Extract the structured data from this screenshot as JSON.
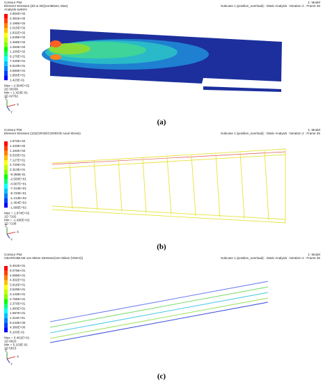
{
  "panels": [
    {
      "title_lines": [
        "Contour Plot",
        "Element Stresses (2D & 3D)(vonMises, Max)",
        "Analysis system"
      ],
      "header_right": [
        "1: Model",
        "Subcase 1 (positive_overload) : Static Analysis : Iteration 2 : Frame 25"
      ],
      "legend": [
        "2.564E+02",
        "2.381E+02",
        "2.198E+02",
        "2.015E+02",
        "1.832E+02",
        "1.649E+02",
        "1.466E+02",
        "1.283E+02",
        "1.100E+02",
        "9.170E+01",
        "7.340E+01",
        "5.510E+01",
        "3.680E+01",
        "1.850E+01",
        "1.423E-01"
      ],
      "summary": [
        "Max = 2.564E+02",
        "2D 30336",
        "Min = 1.423E-01",
        "2D 42762"
      ],
      "triad": [
        "Z",
        "Y",
        "X"
      ],
      "caption": "(a)"
    },
    {
      "title_lines": [
        "Contour Plot",
        "Element Stresses (1D)(CROD/CONROD Axial Stress)"
      ],
      "header_right": [
        "1: Model",
        "Subcase 1 (positive_overload) : Static Analysis : Iteration 2 : Frame 25"
      ],
      "legend": [
        "1.674E+02",
        "1.433E+02",
        "1.194E+02",
        "9.533E+01",
        "7.127E+01",
        "4.720E+01",
        "2.313E+01",
        "-9.358E-01",
        "-2.500E+01",
        "-4.907E+01",
        "-7.313E+01",
        "-9.720E+01",
        "-1.213E+02",
        "-1.454E+02",
        "-1.695E+02"
      ],
      "summary": [
        "Max = 1.674E+02",
        "1D 7192",
        "Min = -1.695E+02",
        "1D 7138"
      ],
      "triad": [
        "Z",
        "Y",
        "X"
      ],
      "caption": "(b)"
    },
    {
      "title_lines": [
        "Contour Plot",
        "CBAR/CBEAM von Mises Stresses(Von Mises (VMAX))"
      ],
      "header_right": [
        "1: Model",
        "Subcase 1 (positive_overload) : Static Analysis : Iteration 2 : Frame 25"
      ],
      "legend": [
        "5.461E+01",
        "5.075E+01",
        "4.688E+01",
        "4.302E+01",
        "3.916E+01",
        "3.529E+01",
        "3.143E+01",
        "2.756E+01",
        "2.370E+01",
        "1.983E+01",
        "1.597E+01",
        "1.211E+01",
        "8.243E+00",
        "4.380E+00",
        "5.103E-01"
      ],
      "summary": [
        "Max = 5.461E+01",
        "1D 9620",
        "Min = 5.103E-01",
        "1D 5815"
      ],
      "triad": [
        "Z",
        "Y",
        "X"
      ],
      "caption": "(c)"
    }
  ]
}
